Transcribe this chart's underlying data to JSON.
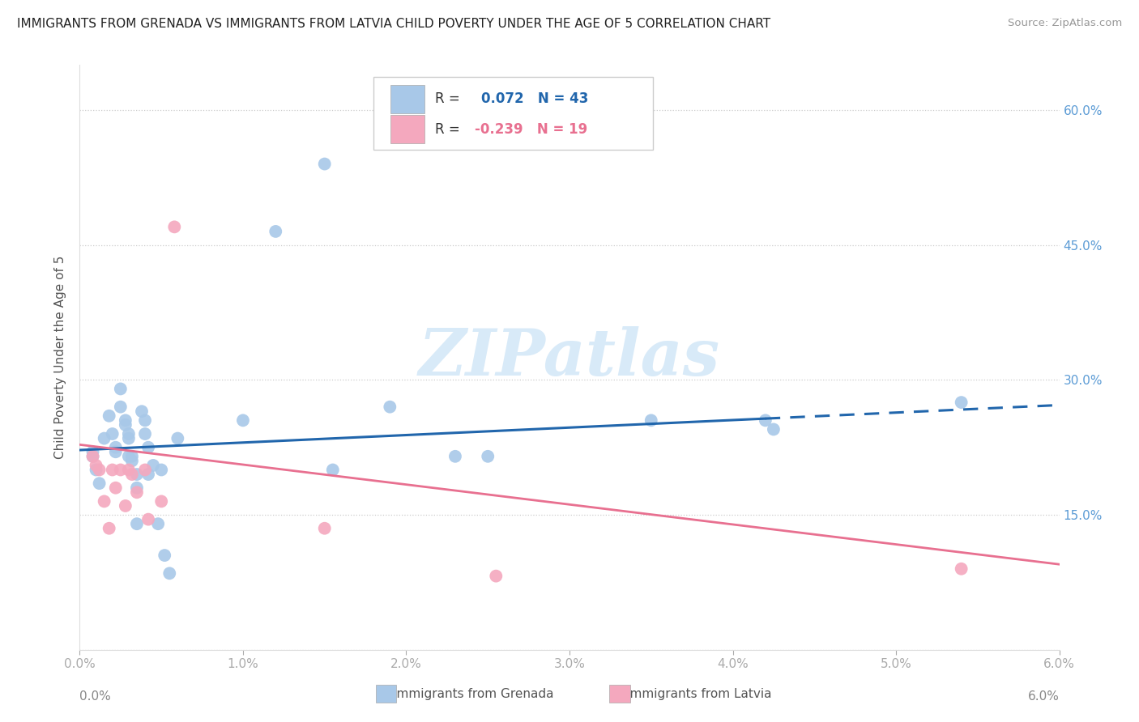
{
  "title": "IMMIGRANTS FROM GRENADA VS IMMIGRANTS FROM LATVIA CHILD POVERTY UNDER THE AGE OF 5 CORRELATION CHART",
  "source": "Source: ZipAtlas.com",
  "ylabel": "Child Poverty Under the Age of 5",
  "xlim": [
    0.0,
    0.06
  ],
  "ylim": [
    0.0,
    0.65
  ],
  "xticks": [
    0.0,
    0.01,
    0.02,
    0.03,
    0.04,
    0.05,
    0.06
  ],
  "xticklabels": [
    "0.0%",
    "1.0%",
    "2.0%",
    "3.0%",
    "4.0%",
    "5.0%",
    "6.0%"
  ],
  "yticks": [
    0.0,
    0.15,
    0.3,
    0.45,
    0.6
  ],
  "right_yticklabels": [
    "",
    "15.0%",
    "30.0%",
    "45.0%",
    "60.0%"
  ],
  "grenada_R": 0.072,
  "grenada_N": 43,
  "latvia_R": -0.239,
  "latvia_N": 19,
  "grenada_color": "#a8c8e8",
  "latvia_color": "#f4a8be",
  "grenada_line_color": "#2166ac",
  "latvia_line_color": "#e87090",
  "right_tick_color": "#5b9bd5",
  "watermark_color": "#d8eaf8",
  "legend_label_grenada": "Immigrants from Grenada",
  "legend_label_latvia": "Immigrants from Latvia",
  "grenada_points_x": [
    0.0008,
    0.0008,
    0.001,
    0.0012,
    0.0015,
    0.0018,
    0.002,
    0.0022,
    0.0022,
    0.0025,
    0.0025,
    0.0028,
    0.0028,
    0.003,
    0.003,
    0.003,
    0.0032,
    0.0032,
    0.0035,
    0.0035,
    0.0035,
    0.0038,
    0.004,
    0.004,
    0.0042,
    0.0042,
    0.0045,
    0.0048,
    0.005,
    0.0052,
    0.0055,
    0.006,
    0.01,
    0.012,
    0.015,
    0.0155,
    0.019,
    0.023,
    0.025,
    0.035,
    0.042,
    0.0425,
    0.054
  ],
  "grenada_points_y": [
    0.215,
    0.22,
    0.2,
    0.185,
    0.235,
    0.26,
    0.24,
    0.225,
    0.22,
    0.29,
    0.27,
    0.255,
    0.25,
    0.24,
    0.235,
    0.215,
    0.215,
    0.21,
    0.195,
    0.18,
    0.14,
    0.265,
    0.255,
    0.24,
    0.225,
    0.195,
    0.205,
    0.14,
    0.2,
    0.105,
    0.085,
    0.235,
    0.255,
    0.465,
    0.54,
    0.2,
    0.27,
    0.215,
    0.215,
    0.255,
    0.255,
    0.245,
    0.275
  ],
  "latvia_points_x": [
    0.0008,
    0.001,
    0.0012,
    0.0015,
    0.0018,
    0.002,
    0.0022,
    0.0025,
    0.0028,
    0.003,
    0.0032,
    0.0035,
    0.004,
    0.0042,
    0.005,
    0.0058,
    0.015,
    0.0255,
    0.054
  ],
  "latvia_points_y": [
    0.215,
    0.205,
    0.2,
    0.165,
    0.135,
    0.2,
    0.18,
    0.2,
    0.16,
    0.2,
    0.195,
    0.175,
    0.2,
    0.145,
    0.165,
    0.47,
    0.135,
    0.082,
    0.09
  ],
  "grenada_trend_x0": 0.0,
  "grenada_trend_x1": 0.06,
  "grenada_trend_y0": 0.222,
  "grenada_trend_y1": 0.272,
  "grenada_trend_solid_x1": 0.042,
  "grenada_trend_solid_y1": 0.257,
  "latvia_trend_x0": 0.0,
  "latvia_trend_x1": 0.06,
  "latvia_trend_y0": 0.228,
  "latvia_trend_y1": 0.095
}
